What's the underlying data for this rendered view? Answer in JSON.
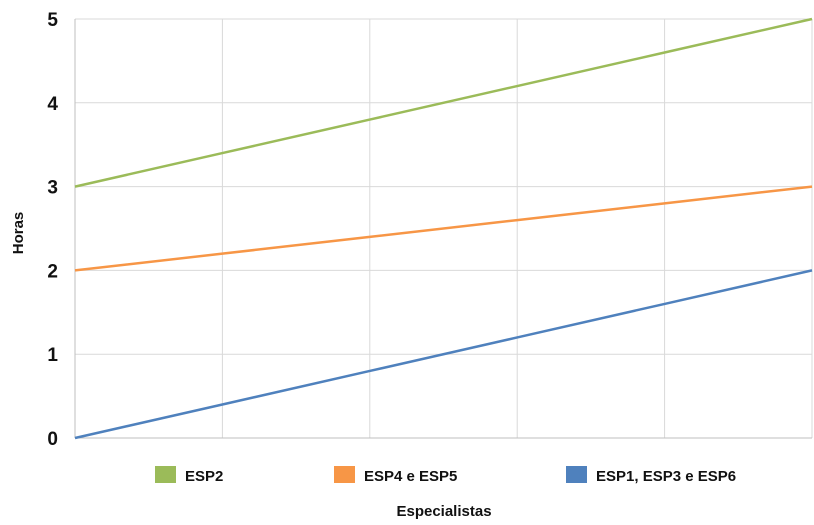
{
  "chart_data": {
    "type": "line",
    "title": "",
    "xlabel": "Especialistas",
    "ylabel": "Horas",
    "x": [
      0,
      1,
      2,
      3,
      4,
      5
    ],
    "xlim": [
      0,
      5
    ],
    "ylim": [
      0,
      5
    ],
    "yticks": [
      "0",
      "1",
      "2",
      "3",
      "4",
      "5"
    ],
    "grid": true,
    "legend_position": "bottom",
    "series": [
      {
        "name": "ESP2",
        "color": "#9bbb59",
        "values": [
          3,
          3.4,
          3.8,
          4.2,
          4.6,
          5
        ]
      },
      {
        "name": "ESP4 e ESP5",
        "color": "#f79646",
        "values": [
          2,
          2.2,
          2.4,
          2.6,
          2.8,
          3
        ]
      },
      {
        "name": "ESP1, ESP3 e ESP6",
        "color": "#4f81bd",
        "values": [
          0,
          0.4,
          0.8,
          1.2,
          1.6,
          2
        ]
      }
    ]
  }
}
